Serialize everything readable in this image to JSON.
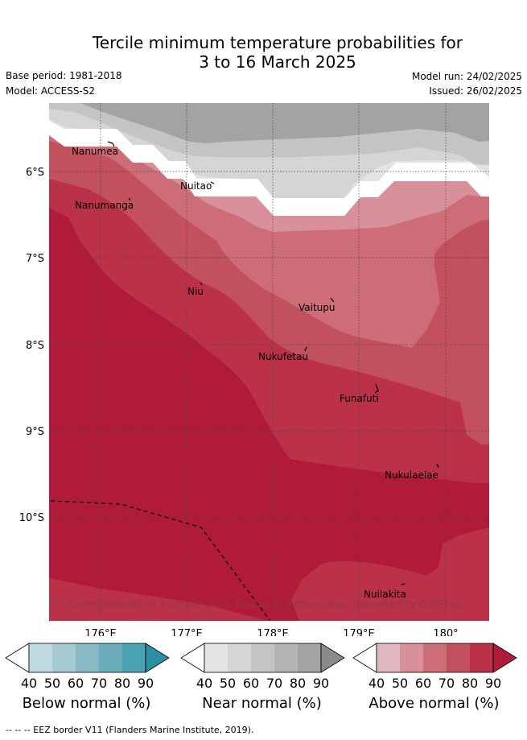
{
  "header": {
    "title_line1": "Tercile minimum temperature probabilities for",
    "title_line2": "3 to 16 March 2025",
    "base_period": "Base period: 1981-2018",
    "model": "Model: ACCESS-S2",
    "model_run": "Model run: 24/02/2025",
    "issued": "Issued: 26/02/2025"
  },
  "map": {
    "lat_labels": [
      "6°S",
      "7°S",
      "8°S",
      "9°S",
      "10°S"
    ],
    "lon_labels": [
      "176°E",
      "177°E",
      "178°E",
      "179°E",
      "180°"
    ],
    "islands": [
      "Nanumea",
      "Nuitao",
      "Nanumanga",
      "Niu",
      "Vaitupu",
      "Nukufetau",
      "Funafuti",
      "Nukulaelae",
      "Nuilakita"
    ],
    "copyright": "© Commonwealth of Australia 2025, Bureau of Meteorology, supported by COSPPac"
  },
  "colorbars": {
    "ticks": [
      "40",
      "50",
      "60",
      "70",
      "80",
      "90"
    ],
    "below": {
      "label": "Below normal (%)",
      "colors": [
        "#ffffff",
        "#bed9e0",
        "#a6cad2",
        "#8ab9c6",
        "#6badbb",
        "#4ba2b2",
        "#2c8fa2"
      ]
    },
    "near": {
      "label": "Near normal (%)",
      "colors": [
        "#ffffff",
        "#e3e3e3",
        "#d5d5d5",
        "#c4c4c4",
        "#b5b5b5",
        "#a3a3a3",
        "#8a8a8a"
      ]
    },
    "above": {
      "label": "Above normal (%)",
      "colors": [
        "#ffffff",
        "#e2b8c0",
        "#d8919b",
        "#cd6d78",
        "#c3515d",
        "#bb3148",
        "#b01c38"
      ]
    }
  },
  "footer": "--  --  -- EEZ border V11 (Flanders Marine Institute, 2019)."
}
